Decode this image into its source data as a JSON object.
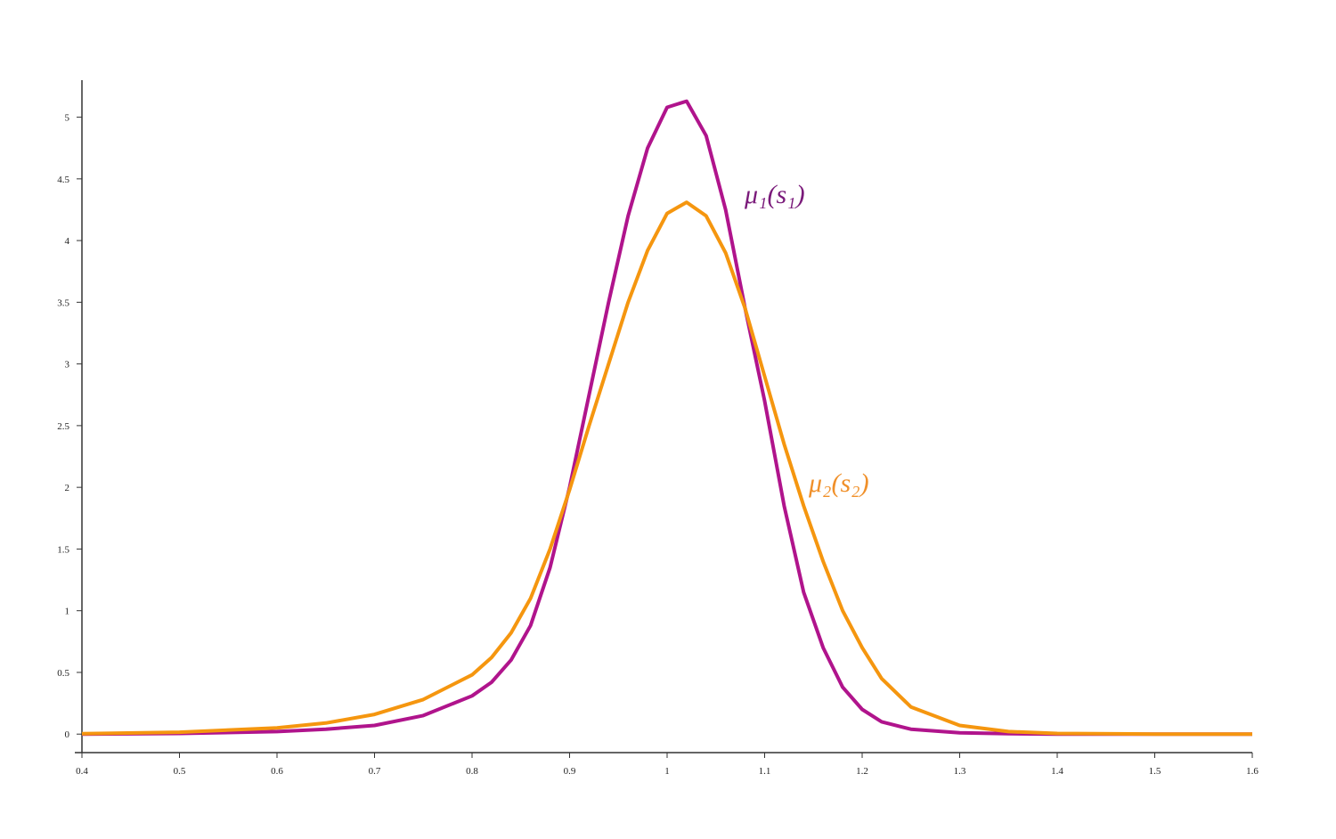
{
  "chart_data": {
    "type": "line",
    "x": [
      0.4,
      0.5,
      0.6,
      0.65,
      0.7,
      0.75,
      0.8,
      0.82,
      0.84,
      0.86,
      0.88,
      0.9,
      0.92,
      0.94,
      0.96,
      0.98,
      1.0,
      1.02,
      1.04,
      1.06,
      1.08,
      1.1,
      1.12,
      1.14,
      1.16,
      1.18,
      1.2,
      1.22,
      1.25,
      1.3,
      1.35,
      1.4,
      1.5,
      1.6
    ],
    "series": [
      {
        "color": "#b0148c",
        "values": [
          0,
          0.005,
          0.02,
          0.04,
          0.07,
          0.15,
          0.31,
          0.42,
          0.6,
          0.88,
          1.35,
          2.0,
          2.75,
          3.5,
          4.2,
          4.75,
          5.08,
          5.13,
          4.85,
          4.25,
          3.45,
          2.7,
          1.85,
          1.15,
          0.7,
          0.38,
          0.2,
          0.1,
          0.04,
          0.01,
          0.003,
          0,
          0,
          0
        ]
      },
      {
        "color": "#f5960f",
        "values": [
          0.003,
          0.015,
          0.05,
          0.09,
          0.16,
          0.28,
          0.48,
          0.62,
          0.82,
          1.1,
          1.5,
          1.98,
          2.5,
          3.0,
          3.5,
          3.92,
          4.22,
          4.31,
          4.2,
          3.9,
          3.45,
          2.9,
          2.35,
          1.85,
          1.4,
          1.0,
          0.7,
          0.45,
          0.22,
          0.07,
          0.02,
          0.005,
          0,
          0
        ]
      }
    ],
    "annotations": [
      {
        "text": "μ₁(s₁)",
        "color": "#7a1a7a"
      },
      {
        "text": "μ₂(s₂)",
        "color": "#f0902a"
      }
    ],
    "xlim": [
      0.4,
      1.6
    ],
    "ylim": [
      -0.15,
      5.3
    ],
    "xticks": [
      0.4,
      0.5,
      0.6,
      0.7,
      0.8,
      0.9,
      1,
      1.1,
      1.2,
      1.3,
      1.4,
      1.5,
      1.6
    ],
    "yticks": [
      0,
      0.5,
      1,
      1.5,
      2,
      2.5,
      3,
      3.5,
      4,
      4.5,
      5
    ]
  }
}
